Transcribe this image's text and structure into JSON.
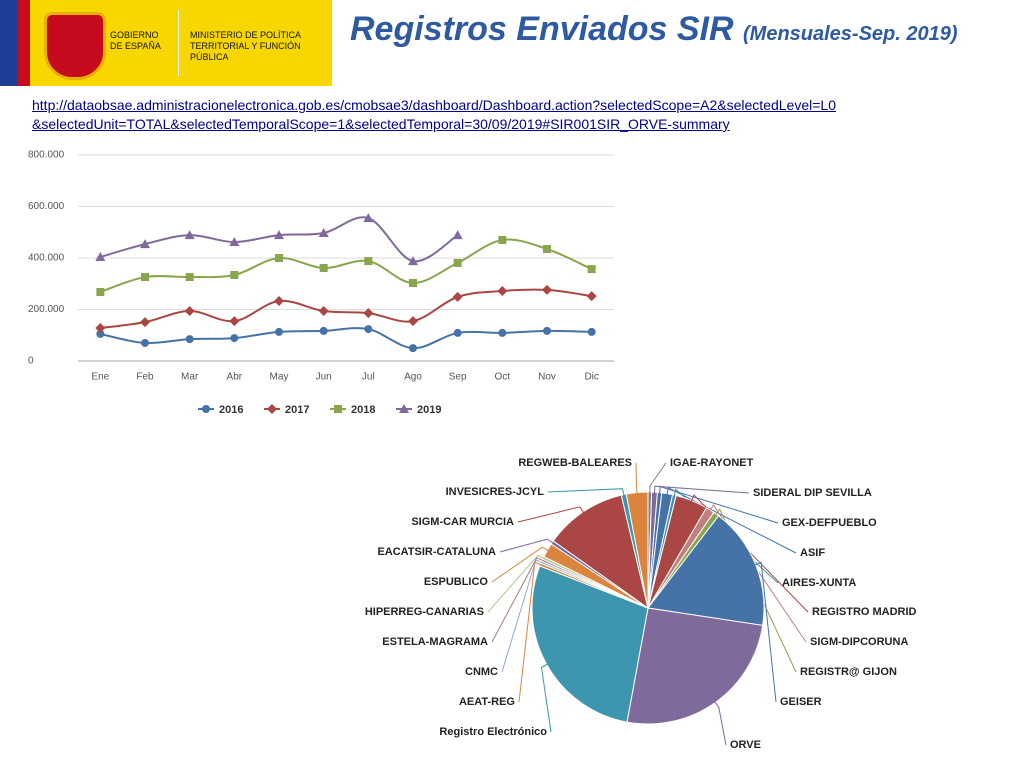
{
  "header": {
    "logo_left": "GOBIERNO DE ESPAÑA",
    "logo_right": "MINISTERIO DE POLÍTICA TERRITORIAL Y FUNCIÓN PÚBLICA",
    "title": "Registros Enviados SIR",
    "subtitle": "(Mensuales-Sep. 2019)",
    "url_line1": "http://dataobsae.administracionelectronica.gob.es/cmobsae3/dashboard/Dashboard.action?selectedScope=A2&selectedLevel=L0",
    "url_line2": "&selectedUnit=TOTAL&selectedTemporalScope=1&selectedTemporal=30/09/2019#SIR001SIR_ORVE-summary"
  },
  "chart_data": [
    {
      "type": "line",
      "categories": [
        "Ene",
        "Feb",
        "Mar",
        "Abr",
        "May",
        "Jun",
        "Jul",
        "Ago",
        "Sep",
        "Oct",
        "Nov",
        "Dic"
      ],
      "series": [
        {
          "name": "2016",
          "color": "#4572a7",
          "marker": "circle",
          "values": [
            105000,
            70000,
            85000,
            89000,
            113000,
            117000,
            124000,
            50000,
            109000,
            109000,
            117000,
            113000
          ]
        },
        {
          "name": "2017",
          "color": "#aa4643",
          "marker": "diamond",
          "values": [
            128000,
            151000,
            194000,
            155000,
            233000,
            194000,
            186000,
            155000,
            249000,
            272000,
            276000,
            252000
          ]
        },
        {
          "name": "2018",
          "color": "#89a54e",
          "marker": "square",
          "values": [
            268000,
            326000,
            326000,
            334000,
            400000,
            361000,
            388000,
            303000,
            381000,
            470000,
            435000,
            357000
          ]
        },
        {
          "name": "2019",
          "color": "#80699b",
          "marker": "triangle",
          "values": [
            404000,
            454000,
            489000,
            462000,
            489000,
            497000,
            555000,
            388000,
            489000,
            null,
            null,
            null
          ]
        }
      ],
      "ylim": [
        0,
        800000
      ],
      "yticks": [
        {
          "value": 0,
          "label": "0"
        },
        {
          "value": 200000,
          "label": "200.000"
        },
        {
          "value": 400000,
          "label": "400.000"
        },
        {
          "value": 600000,
          "label": "600.000"
        },
        {
          "value": 800000,
          "label": "800.000"
        }
      ],
      "grid": true,
      "legend": "bottom"
    },
    {
      "type": "pie",
      "categories": [
        "IGAE-RAYONET",
        "SIDERAL DIP SEVILLA",
        "GEX-DEFPUEBLO",
        "ASIF",
        "AIRES-XUNTA",
        "REGISTRO MADRID",
        "SIGM-DIPCORUNA",
        "REGISTR@ GIJON",
        "GEISER",
        "ORVE",
        "Registro Electrónico",
        "AEAT-REG",
        "CNMC",
        "ESTELA-MAGRAMA",
        "HIPERREG-CANARIAS",
        "ESPUBLICO",
        "EACATSIR-CATALUNA",
        "SIGM-CAR MURCIA",
        "INVESICRES-JCYL",
        "REGWEB-BALEARES"
      ],
      "values": [
        0.5,
        0.8,
        0.6,
        1.5,
        0.5,
        4.5,
        1.2,
        0.8,
        17,
        25.5,
        28,
        0.4,
        0.3,
        0.3,
        0.4,
        2,
        0.5,
        11.5,
        0.7,
        3
      ],
      "colors": [
        "#7f7f7f",
        "#80699b",
        "#4572a7",
        "#4572a7",
        "#3d96ae",
        "#aa4643",
        "#c08080",
        "#89a54e",
        "#4572a7",
        "#80699b",
        "#3d96ae",
        "#db843d",
        "#92a8cd",
        "#a47d7c",
        "#b5ca92",
        "#db843d",
        "#80699b",
        "#aa4643",
        "#3d96ae",
        "#db843d"
      ]
    }
  ]
}
